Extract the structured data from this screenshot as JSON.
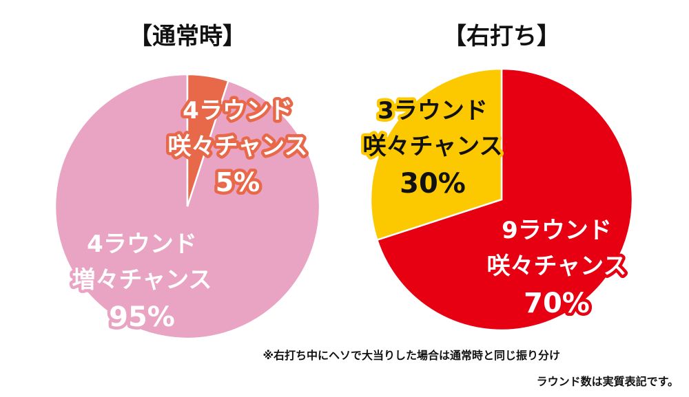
{
  "chart_data": [
    {
      "type": "pie",
      "title": "【通常時】",
      "slices": [
        {
          "label_lines": [
            "4ラウンド",
            "咲々チャンス"
          ],
          "pct_label": "5%",
          "value": 5,
          "color": "#e8684a"
        },
        {
          "label_lines": [
            "4ラウンド",
            "増々チャンス"
          ],
          "pct_label": "95%",
          "value": 95,
          "color": "#e9a3c3"
        }
      ]
    },
    {
      "type": "pie",
      "title": "【右打ち】",
      "slices": [
        {
          "label_lines": [
            "9ラウンド",
            "咲々チャンス"
          ],
          "pct_label": "70%",
          "value": 70,
          "color": "#e60012"
        },
        {
          "label_lines": [
            "3ラウンド",
            "咲々チャンス"
          ],
          "pct_label": "30%",
          "value": 30,
          "color": "#fcc800"
        }
      ]
    }
  ],
  "notes": {
    "line1": "※右打ち中にヘソで大当りした場合は通常時と同じ振り分け",
    "line2": "ラウンド数は実質表記です。"
  }
}
